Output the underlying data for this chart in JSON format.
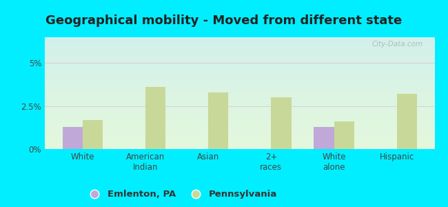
{
  "title": "Geographical mobility - Moved from different state",
  "categories": [
    "White",
    "American\nIndian",
    "Asian",
    "2+\nraces",
    "White\nalone",
    "Hispanic"
  ],
  "emlenton_values": [
    1.3,
    0.0,
    0.0,
    0.0,
    1.3,
    0.0
  ],
  "pennsylvania_values": [
    1.7,
    3.6,
    3.3,
    3.0,
    1.6,
    3.2
  ],
  "emlenton_color": "#c0a8d8",
  "pennsylvania_color": "#c8d898",
  "bar_width": 0.32,
  "ylim": [
    0,
    6.5
  ],
  "yticks": [
    0,
    2.5,
    5.0
  ],
  "ytick_labels": [
    "0%",
    "2.5%",
    "5%"
  ],
  "grid_color": "#ddaabb",
  "grid_alpha": 0.5,
  "outer_background": "#00eeff",
  "legend_emlenton": "Emlenton, PA",
  "legend_pennsylvania": "Pennsylvania",
  "watermark": "City-Data.com",
  "title_fontsize": 13,
  "tick_fontsize": 8.5,
  "legend_fontsize": 9.5,
  "tick_color": "#444444",
  "title_color": "#222222"
}
